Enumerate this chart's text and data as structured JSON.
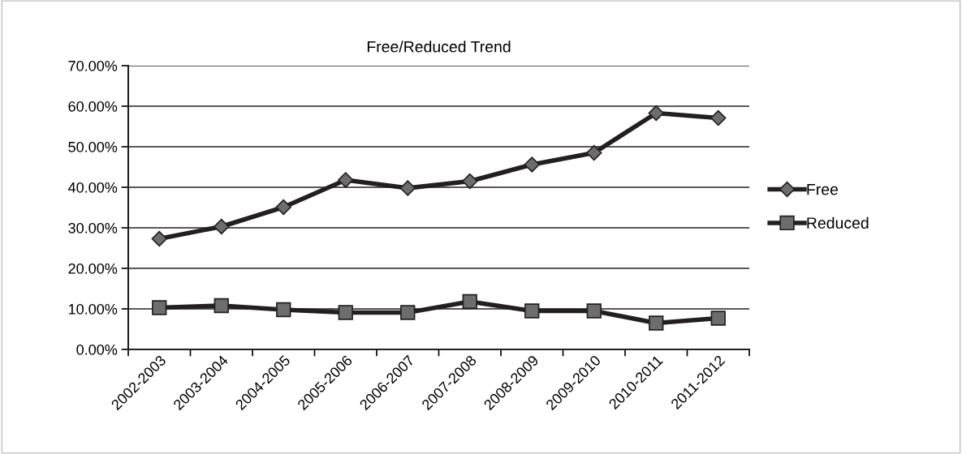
{
  "chart_data": {
    "type": "line",
    "title": "Free/Reduced Trend",
    "categories": [
      "2002-2003",
      "2003-2004",
      "2004-2005",
      "2005-2006",
      "2006-2007",
      "2007-2008",
      "2008-2009",
      "2009-2010",
      "2010-2011",
      "2011-2012"
    ],
    "series": [
      {
        "name": "Free",
        "color": "#231f20",
        "marker": "diamond",
        "values": [
          27.3,
          30.3,
          35.1,
          41.8,
          39.8,
          41.5,
          45.6,
          48.5,
          58.3,
          57.1
        ]
      },
      {
        "name": "Reduced",
        "color": "#231f20",
        "marker": "square",
        "values": [
          10.3,
          10.8,
          9.8,
          9.1,
          9.1,
          11.8,
          9.5,
          9.5,
          6.5,
          7.7
        ]
      }
    ],
    "ylim": [
      0,
      70
    ],
    "yticks": [
      {
        "value": 0,
        "label": "0.00%"
      },
      {
        "value": 10,
        "label": "10.00%"
      },
      {
        "value": 20,
        "label": "20.00%"
      },
      {
        "value": 30,
        "label": "30.00%"
      },
      {
        "value": 40,
        "label": "40.00%"
      },
      {
        "value": 50,
        "label": "50.00%"
      },
      {
        "value": 60,
        "label": "60.00%"
      },
      {
        "value": 70,
        "label": "70.00%"
      }
    ],
    "grid": "y",
    "legend": "right",
    "line_style": "solid"
  }
}
